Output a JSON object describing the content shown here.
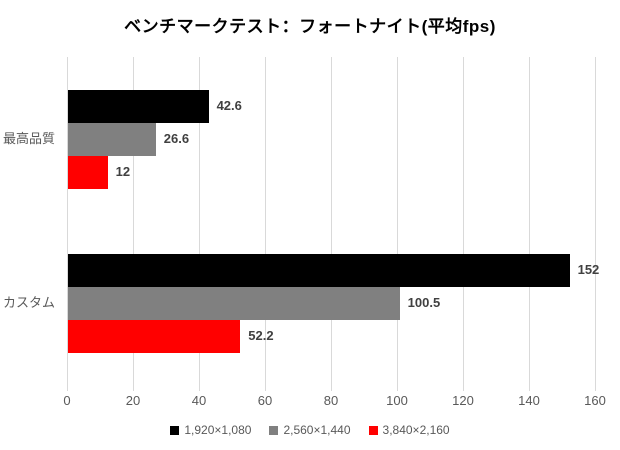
{
  "colors": {
    "background": "#FFFFFF",
    "grid": "#D9D9D9",
    "axis_text": "#595959",
    "category_text": "#595959",
    "value_label_text": "#404040",
    "legend_text": "#595959",
    "title_text": "#000000"
  },
  "chart_data": {
    "type": "bar",
    "orientation": "horizontal",
    "title": "ベンチマークテスト：フォートナイト(平均fps)",
    "categories": [
      "最高品質",
      "カスタム"
    ],
    "series": [
      {
        "name": "1,920×1,080",
        "color": "#000000",
        "values": [
          42.6,
          152
        ],
        "labels": [
          "42.6",
          "152"
        ]
      },
      {
        "name": "2,560×1,440",
        "color": "#808080",
        "values": [
          26.6,
          100.5
        ],
        "labels": [
          "26.6",
          "100.5"
        ]
      },
      {
        "name": "3,840×2,160",
        "color": "#FF0000",
        "values": [
          12,
          52.2
        ],
        "labels": [
          "12",
          "52.2"
        ]
      }
    ],
    "xlim": [
      0,
      160
    ],
    "x_ticks": [
      0,
      20,
      40,
      60,
      80,
      100,
      120,
      140,
      160
    ],
    "grid": true,
    "legend_position": "bottom"
  }
}
